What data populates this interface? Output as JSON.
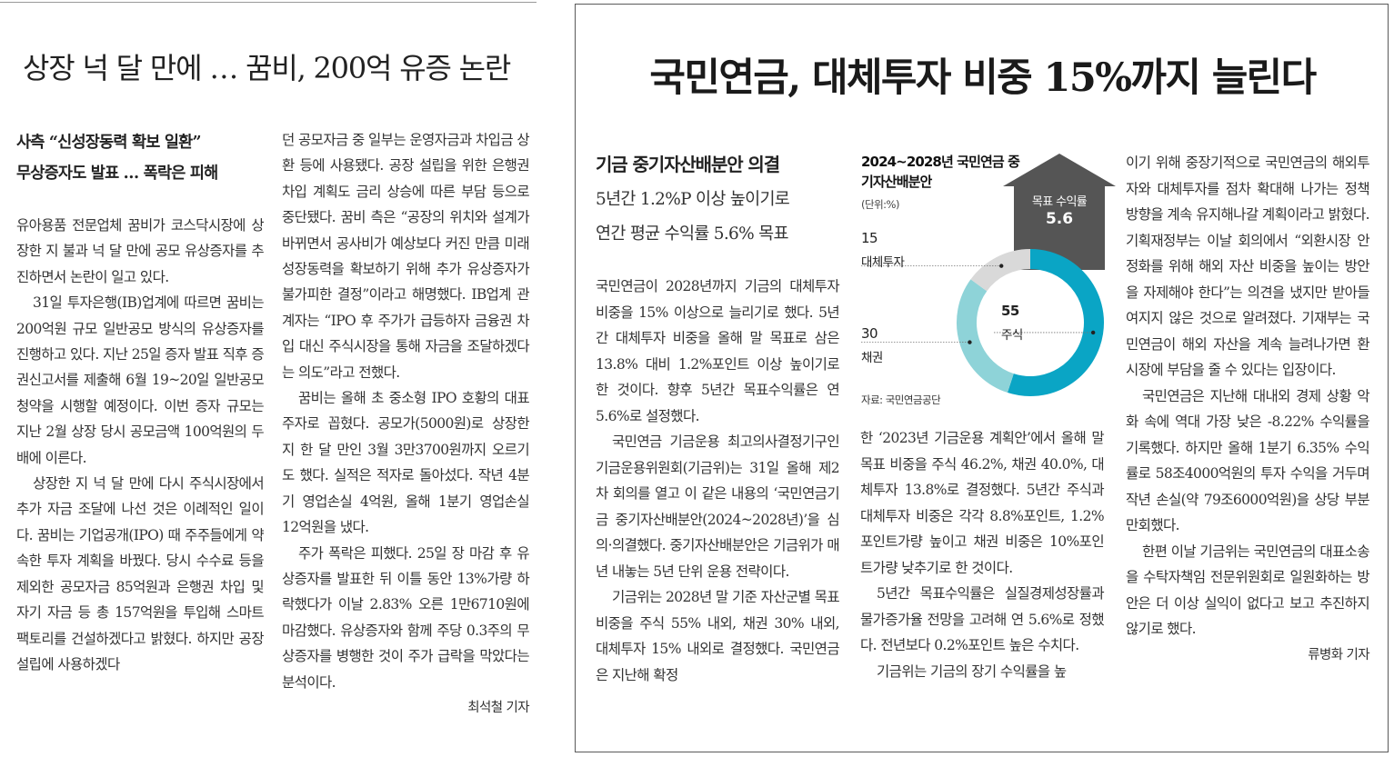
{
  "left_article": {
    "headline": "상장 넉 달 만에 … 꿈비, 200억 유증 논란",
    "subheads": [
      "사측 “신성장동력 확보 일환”",
      "무상증자도 발표 … 폭락은 피해"
    ],
    "column1_paragraphs": [
      "유아용품 전문업체 꿈비가 코스닥시장에 상장한 지 불과 넉 달 만에 공모 유상증자를 추진하면서 논란이 일고 있다.",
      "31일 투자은행(IB)업계에 따르면 꿈비는 200억원 규모 일반공모 방식의 유상증자를 진행하고 있다. 지난 25일 증자 발표 직후 증권신고서를 제출해 6월 19~20일 일반공모 청약을 시행할 예정이다. 이번 증자 규모는 지난 2월 상장 당시 공모금액 100억원의 두 배에 이른다.",
      "상장한 지 넉 달 만에 다시 주식시장에서 추가 자금 조달에 나선 것은 이례적인 일이다. 꿈비는 기업공개(IPO) 때 주주들에게 약속한 투자 계획을 바꿨다. 당시 수수료 등을 제외한 공모자금 85억원과 은행권 차입 및 자기 자금 등 총 157억원을 투입해 스마트팩토리를 건설하겠다고 밝혔다. 하지만 공장 설립에 사용하겠다"
    ],
    "column2_paragraphs": [
      "던 공모자금 중 일부는 운영자금과 차입금 상환 등에 사용됐다. 공장 설립을 위한 은행권 차입 계획도 금리 상승에 따른 부담 등으로 중단됐다. 꿈비 측은 “공장의 위치와 설계가 바뀌면서 공사비가 예상보다 커진 만큼 미래 성장동력을 확보하기 위해 추가 유상증자가 불가피한 결정”이라고 해명했다. IB업계 관계자는 “IPO 후 주가가 급등하자 금융권 차입 대신 주식시장을 통해 자금을 조달하겠다는 의도”라고 전했다.",
      "꿈비는 올해 초 중소형 IPO 호황의 대표 주자로 꼽혔다. 공모가(5000원)로 상장한 지 한 달 만인 3월 3만3700원까지 오르기도 했다. 실적은 적자로 돌아섰다. 작년 4분기 영업손실 4억원, 올해 1분기 영업손실 12억원을 냈다.",
      "주가 폭락은 피했다. 25일 장 마감 후 유상증자를 발표한 뒤 이틀 동안 13%가량 하락했다가 이날 2.83% 오른 1만6710원에 마감했다. 유상증자와 함께 주당 0.3주의 무상증자를 병행한 것이 주가 급락을 막았다는 분석이다."
    ],
    "byline": "최석철 기자"
  },
  "right_article": {
    "headline": "국민연금, 대체투자 비중 15%까지 늘린다",
    "sub1": "기금 중기자산배분안 의결",
    "sub2": "5년간 1.2%P 이상 높이기로",
    "sub3": "연간 평균 수익률 5.6% 목표",
    "column1_paragraphs": [
      "국민연금이 2028년까지 기금의 대체투자 비중을 15% 이상으로 늘리기로 했다. 5년간 대체투자 비중을 올해 말 목표로 삼은 13.8% 대비 1.2%포인트 이상 높이기로 한 것이다. 향후 5년간 목표수익률은 연 5.6%로 설정했다.",
      "국민연금 기금운용 최고의사결정기구인 기금운용위원회(기금위)는 31일 올해 제2차 회의를 열고 이 같은 내용의 ‘국민연금기금 중기자산배분안(2024~2028년)’을 심의·의결했다. 중기자산배분안은 기금위가 매년 내놓는 5년 단위 운용 전략이다.",
      "기금위는 2028년 말 기준 자산군별 목표 비중을 주식 55% 내외, 채권 30% 내외, 대체투자 15% 내외로 결정했다. 국민연금은 지난해 확정"
    ],
    "column2_paragraphs": [
      "한 ‘2023년 기금운용 계획안’에서 올해 말 목표 비중을 주식 46.2%, 채권 40.0%, 대체투자 13.8%로 결정했다. 5년간 주식과 대체투자 비중은 각각 8.8%포인트, 1.2%포인트가량 높이고 채권 비중은 10%포인트가량 낮추기로 한 것이다.",
      "5년간 목표수익률은 실질경제성장률과 물가증가율 전망을 고려해 연 5.6%로 정했다. 전년보다 0.2%포인트 높은 수치다.",
      "기금위는 기금의 장기 수익률을 높"
    ],
    "column3_paragraphs": [
      "이기 위해 중장기적으로 국민연금의 해외투자와 대체투자를 점차 확대해 나가는 정책 방향을 계속 유지해나갈 계획이라고 밝혔다. 기획재정부는 이날 회의에서 “외환시장 안정화를 위해 해외 자산 비중을 높이는 방안을 자제해야 한다”는 의견을 냈지만 받아들여지지 않은 것으로 알려졌다. 기재부는 국민연금이 해외 자산을 계속 늘려나가면 환 시장에 부담을 줄 수 있다는 입장이다.",
      "국민연금은 지난해 대내외 경제 상황 악화 속에 역대 가장 낮은 -8.22% 수익률을 기록했다. 하지만 올해 1분기 6.35% 수익률로 58조4000억원의 투자 수익을 거두며 작년 손실(약 79조6000억원)을 상당 부분 만회했다.",
      "한편 이날 기금위는 국민연금의 대표소송을 수탁자책임 전문위원회로 일원화하는 방안은 더 이상 실익이 없다고 보고 추진하지 않기로 했다."
    ],
    "byline": "류병화 기자"
  },
  "chart_data": {
    "type": "pie",
    "title": "2024~2028년 국민연금 중기자산배분안",
    "unit": "(단위:%)",
    "categories": [
      "주식",
      "채권",
      "대체투자"
    ],
    "values": [
      55,
      30,
      15
    ],
    "target_label": "목표 수익률",
    "target_value": "5.6",
    "source": "자료: 국민연금공단",
    "colors": [
      "#0aa5c5",
      "#8ed3d8",
      "#d9d9d9"
    ],
    "arrow_color": "#555555"
  }
}
